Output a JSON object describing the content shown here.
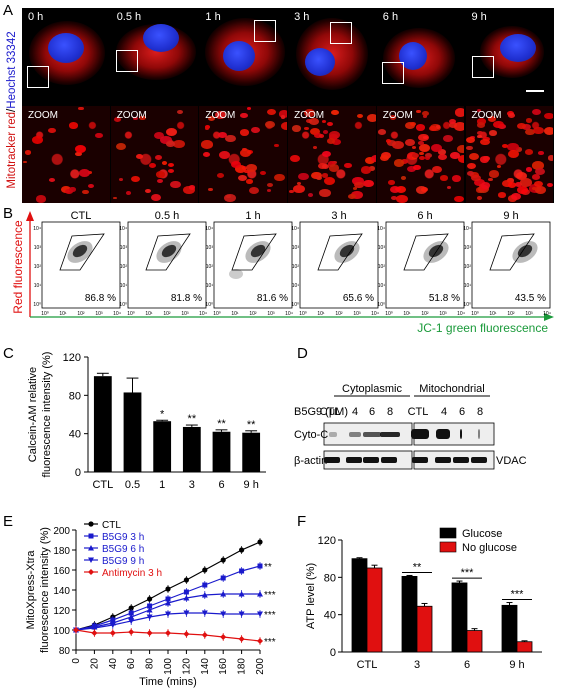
{
  "panels": {
    "A": {
      "label": "A",
      "ylabel_red": "Mitotracker red",
      "ylabel_sep": "/",
      "ylabel_blue": "Heochst 33342",
      "timepoints": [
        "0 h",
        "0.5 h",
        "1 h",
        "3 h",
        "6 h",
        "9 h"
      ],
      "zoom_label": "ZOOM"
    },
    "B": {
      "label": "B",
      "ylabel": "Red fluorescence",
      "xlabel": "JC-1 green fluorescence",
      "conditions": [
        "CTL",
        "0.5 h",
        "1 h",
        "3 h",
        "6 h",
        "9 h"
      ],
      "percentages": [
        "86.8 %",
        "81.8 %",
        "81.6 %",
        "65.6 %",
        "51.8 %",
        "43.5 %"
      ],
      "tick_labels": [
        "10⁰",
        "10¹",
        "10²",
        "10³",
        "10⁴"
      ]
    },
    "C": {
      "label": "C"
    },
    "D": {
      "label": "D",
      "group_cyto": "Cytoplasmic",
      "group_mito": "Mitochondrial",
      "treatment": "B5G9 (μM)",
      "lanes": [
        "CTL",
        "4",
        "6",
        "8",
        "CTL",
        "4",
        "6",
        "8"
      ],
      "row1": "Cyto-C",
      "row2": "β-actin",
      "row2_right": "VDAC"
    },
    "E": {
      "label": "E"
    },
    "F": {
      "label": "F"
    }
  },
  "chart_data": [
    {
      "id": "C",
      "type": "bar",
      "categories": [
        "CTL",
        "0.5",
        "1",
        "3",
        "6",
        "9 h"
      ],
      "values": [
        100,
        83,
        53,
        47,
        42,
        41
      ],
      "errors": [
        3,
        15,
        1,
        2,
        2,
        2
      ],
      "significance": [
        "",
        "",
        "*",
        "**",
        "**",
        "**"
      ],
      "ylabel": "Calcein-AM relative fluorescence intensity (%)",
      "ylabel_lines": [
        "Calcein-AM relative",
        "fluorescence intensity (%)"
      ],
      "ylim": [
        0,
        120
      ],
      "yticks": [
        0,
        40,
        80,
        120
      ],
      "color": "#000000"
    },
    {
      "id": "E",
      "type": "line",
      "x": [
        0,
        20,
        40,
        60,
        80,
        100,
        120,
        140,
        160,
        180,
        200
      ],
      "xlabel": "Time (mins)",
      "ylabel": "MitoXpress-Xtra fluorescence intensity (%)",
      "ylabel_lines": [
        "MitoXpress-Xtra",
        "fluorescence intensity (%)"
      ],
      "ylim": [
        80,
        200
      ],
      "yticks": [
        80,
        100,
        120,
        140,
        160,
        180,
        200
      ],
      "legend_position": "top-left",
      "series": [
        {
          "name": "CTL",
          "color": "#000000",
          "marker": "circle",
          "values": [
            100,
            105,
            113,
            122,
            131,
            141,
            150,
            160,
            170,
            180,
            188
          ],
          "sig": ""
        },
        {
          "name": "B5G9 3 h",
          "color": "#1a1acc",
          "marker": "square",
          "values": [
            100,
            104,
            110,
            117,
            124,
            131,
            138,
            145,
            152,
            159,
            164
          ],
          "sig": "**"
        },
        {
          "name": "B5G9 6 h",
          "color": "#1a1acc",
          "marker": "triangle-up",
          "values": [
            100,
            103,
            107,
            113,
            120,
            127,
            132,
            135,
            136,
            136,
            136
          ],
          "sig": "***"
        },
        {
          "name": "B5G9 9 h",
          "color": "#1a1acc",
          "marker": "triangle-down",
          "values": [
            100,
            102,
            105,
            109,
            113,
            116,
            117,
            117,
            116,
            116,
            116
          ],
          "sig": "***"
        },
        {
          "name": "Antimycin 3 h",
          "color": "#e01010",
          "marker": "diamond",
          "values": [
            100,
            97,
            97,
            98,
            97,
            97,
            96,
            95,
            93,
            91,
            89
          ],
          "sig": "***"
        }
      ]
    },
    {
      "id": "F",
      "type": "bar",
      "categories": [
        "CTL",
        "3",
        "6",
        "9 h"
      ],
      "ylabel": "ATP level (%)",
      "ylim": [
        0,
        120
      ],
      "yticks": [
        0,
        40,
        80,
        120
      ],
      "legend_position": "top-right",
      "series": [
        {
          "name": "Glucose",
          "color": "#000000",
          "values": [
            100,
            81,
            74,
            50
          ],
          "errors": [
            1,
            1,
            2,
            3
          ]
        },
        {
          "name": "No glucose",
          "color": "#e01010",
          "values": [
            90,
            49,
            23,
            11
          ],
          "errors": [
            3,
            3,
            2,
            1
          ]
        }
      ],
      "significance": [
        "",
        "**",
        "***",
        "***"
      ]
    }
  ]
}
